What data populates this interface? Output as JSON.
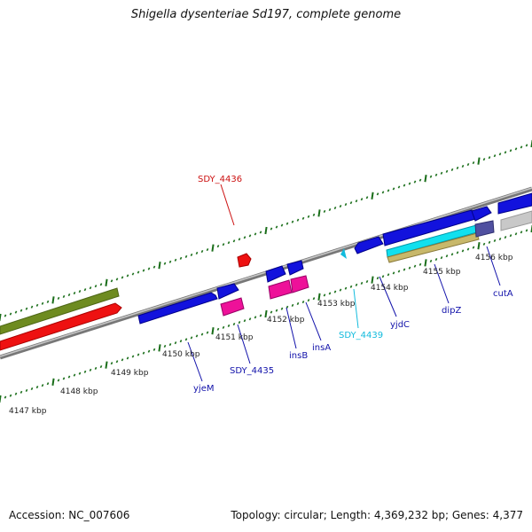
{
  "title": "Shigella dysenteriae Sd197, complete genome",
  "footer": {
    "accession": "Accession: NC_007606",
    "stats": "Topology: circular; Length: 4,369,232 bp; Genes: 4,377"
  },
  "colors": {
    "gene_blue": "#1212dd",
    "rna_pink": "#ee1199",
    "highlight_red": "#ee1111",
    "olive": "#6e8b20",
    "cyan": "#11e0ee",
    "tan": "#c8b86a",
    "slate": "#5050a0",
    "gray": "#c8c8c8",
    "tick_green": "#1a6e1a"
  },
  "scale_labels": [
    "4147 kbp",
    "4148 kbp",
    "4149 kbp",
    "4150 kbp",
    "4151 kbp",
    "4152 kbp",
    "4153 kbp",
    "4154 kbp",
    "4155 kbp",
    "4156 kbp"
  ],
  "gene_labels": [
    {
      "text": "SDY_4436",
      "color": "#cc1111"
    },
    {
      "text": "yjeM",
      "color": "#1111aa"
    },
    {
      "text": "SDY_4435",
      "color": "#1111aa"
    },
    {
      "text": "insB",
      "color": "#1111aa"
    },
    {
      "text": "insA",
      "color": "#1111aa"
    },
    {
      "text": "SDY_4439",
      "color": "#11bbdd"
    },
    {
      "text": "yjdC",
      "color": "#1111aa"
    },
    {
      "text": "dipZ",
      "color": "#1111aa"
    },
    {
      "text": "cutA",
      "color": "#1111aa"
    }
  ]
}
